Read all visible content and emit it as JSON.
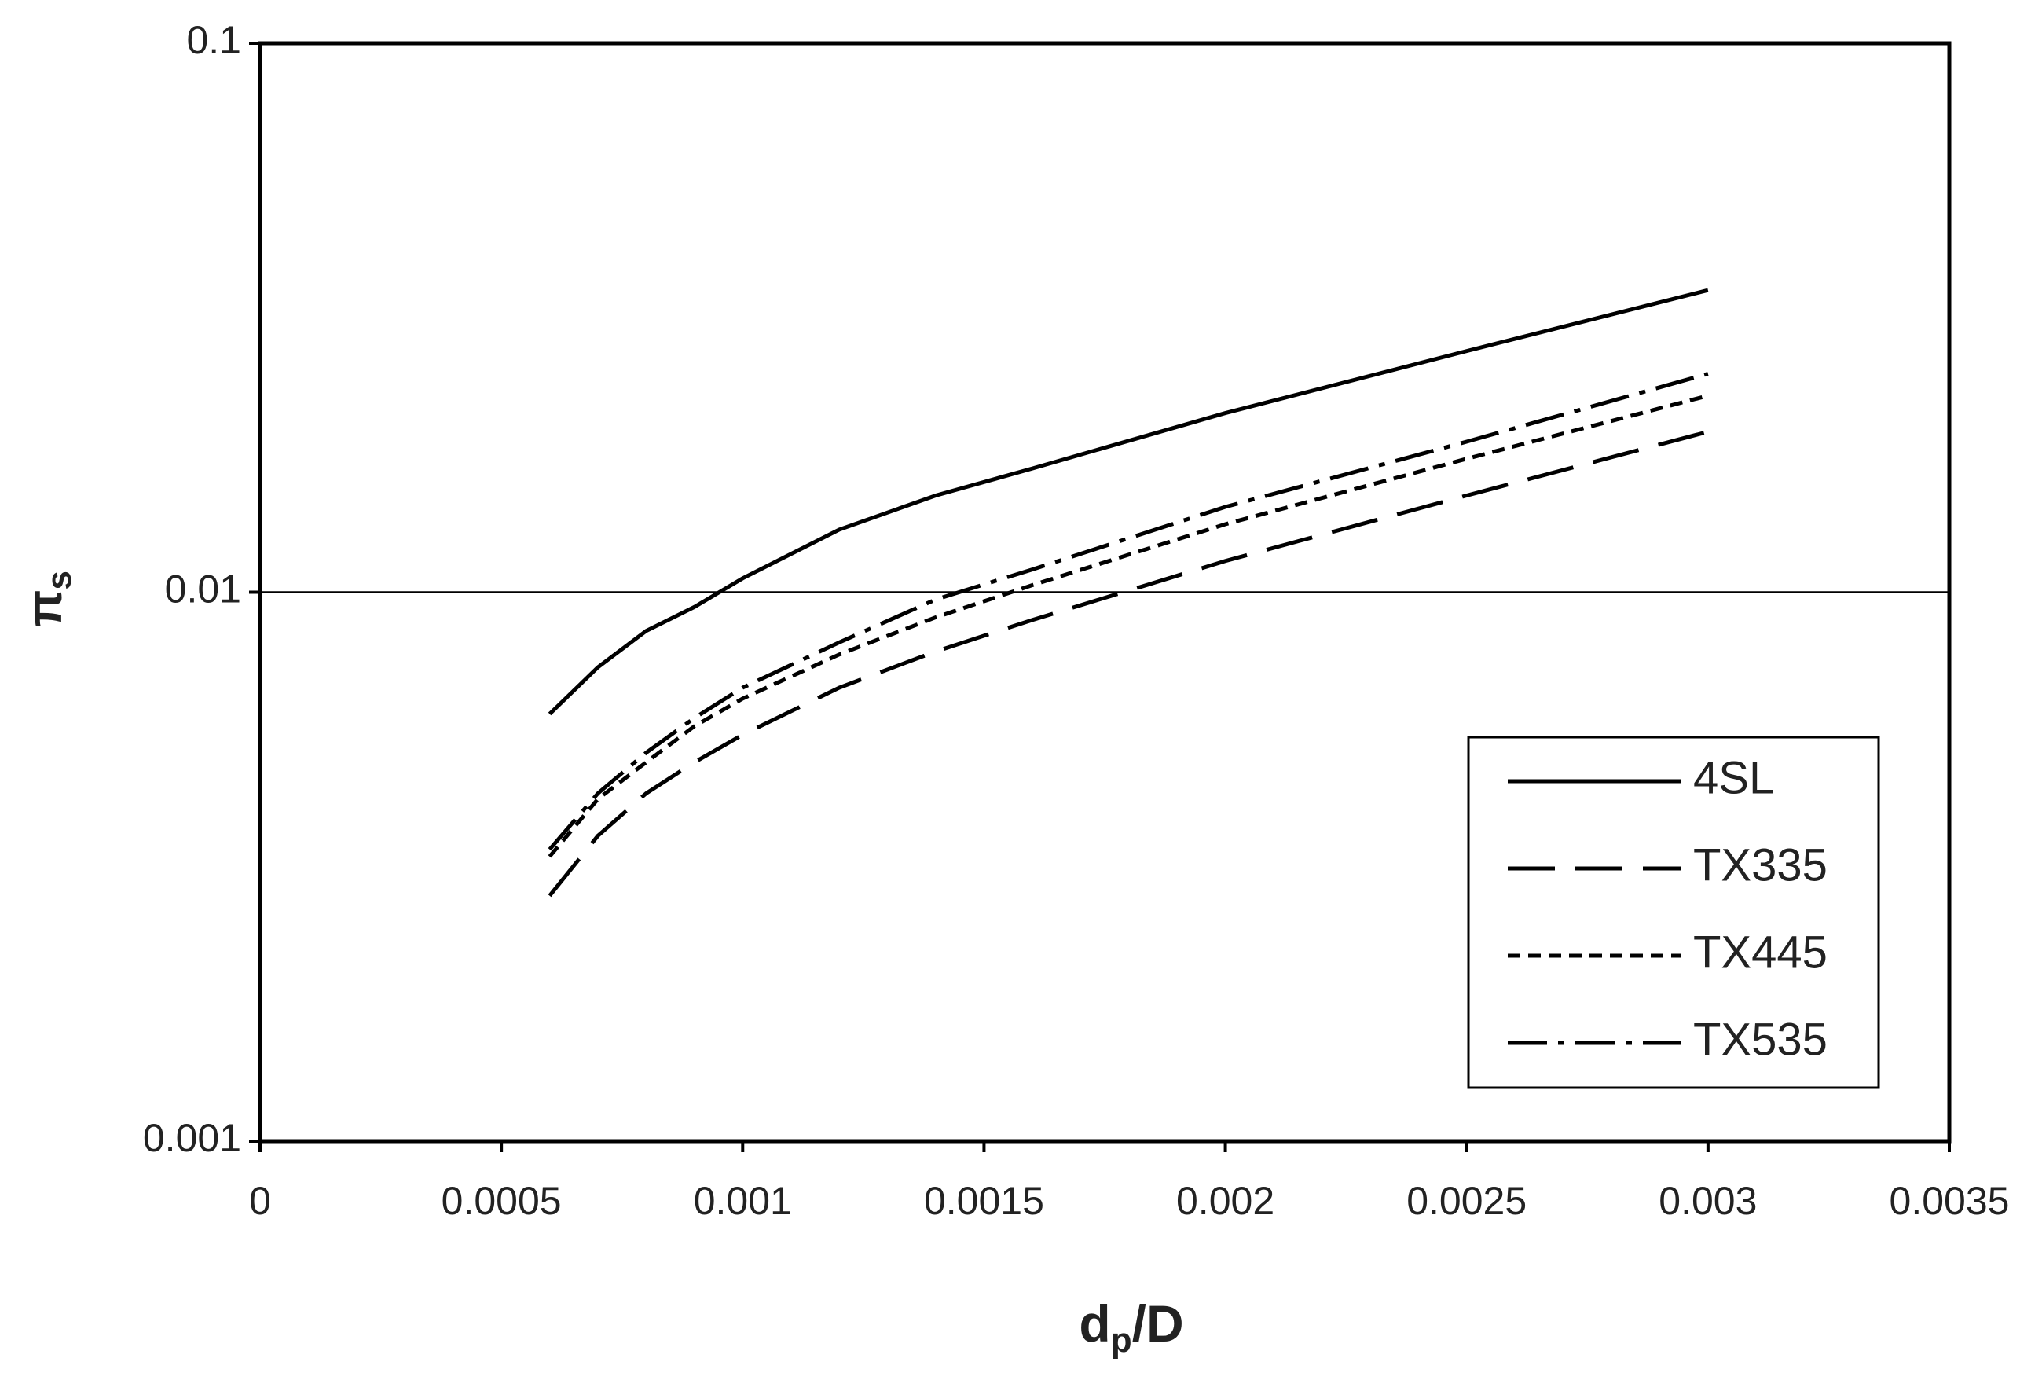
{
  "chart_data": {
    "type": "line",
    "xlabel": {
      "symbol": "d",
      "subscript": "p",
      "suffix": "/D"
    },
    "ylabel": {
      "symbol": "π",
      "subscript": "s"
    },
    "x": [
      0.0006,
      0.0007,
      0.0008,
      0.0009,
      0.001,
      0.0012,
      0.0014,
      0.0016,
      0.002,
      0.0025,
      0.003
    ],
    "series": [
      {
        "name": "4SL",
        "color": "#000000",
        "dash": "solid",
        "values": [
          0.006,
          0.0073,
          0.0085,
          0.0094,
          0.0106,
          0.013,
          0.015,
          0.0168,
          0.0212,
          0.0275,
          0.0355
        ]
      },
      {
        "name": "TX335",
        "color": "#000000",
        "dash": "long-dash",
        "values": [
          0.0028,
          0.0036,
          0.0043,
          0.0049,
          0.0055,
          0.0067,
          0.0078,
          0.0089,
          0.0114,
          0.015,
          0.0196
        ]
      },
      {
        "name": "TX445",
        "color": "#000000",
        "dash": "short-dash",
        "values": [
          0.0033,
          0.0042,
          0.0049,
          0.0057,
          0.0064,
          0.0077,
          0.009,
          0.0103,
          0.0133,
          0.0175,
          0.0228
        ]
      },
      {
        "name": "TX535",
        "color": "#000000",
        "dash": "dash-dot",
        "values": [
          0.0034,
          0.0043,
          0.0051,
          0.0059,
          0.0067,
          0.0081,
          0.0097,
          0.011,
          0.0143,
          0.0188,
          0.025
        ]
      }
    ],
    "xlim": [
      0,
      0.0035
    ],
    "xticks": [
      0,
      0.0005,
      0.001,
      0.0015,
      0.002,
      0.0025,
      0.003,
      0.0035
    ],
    "ylim": [
      0.001,
      0.1
    ],
    "yticks": [
      0.001,
      0.01,
      0.1
    ],
    "ylog": true,
    "grid": true,
    "legend": "lower-right"
  }
}
